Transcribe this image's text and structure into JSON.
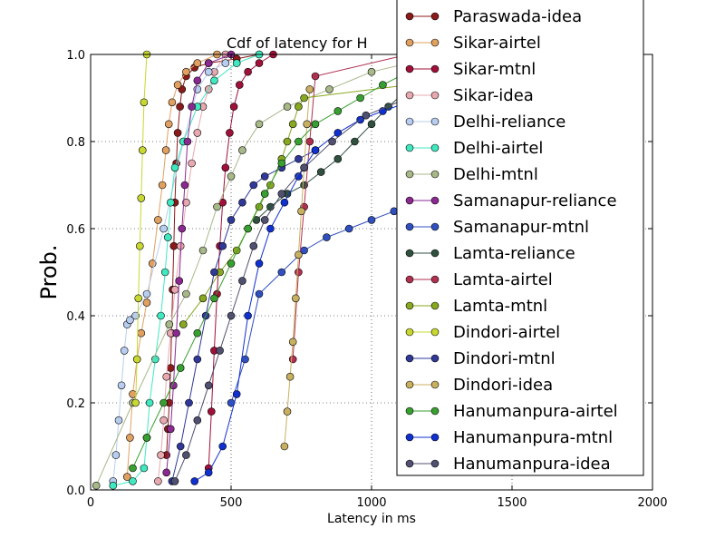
{
  "chart_data": {
    "type": "line",
    "title": "Cdf of latency for H",
    "xlabel": "Latency in ms",
    "ylabel": "Prob.",
    "xlim": [
      0,
      2000
    ],
    "ylim": [
      0,
      1.0
    ],
    "xticks": [
      0,
      500,
      1000,
      1500,
      2000
    ],
    "yticks": [
      0.0,
      0.2,
      0.4,
      0.6,
      0.8,
      1.0
    ],
    "grid": true,
    "legend_position": "top-right",
    "series": [
      {
        "name": "Paraswada-idea",
        "color": "#8b1a1a",
        "x": [
          270,
          275,
          280,
          285,
          288,
          292,
          296,
          300,
          305,
          310,
          318,
          325,
          340,
          370,
          420,
          520,
          600
        ],
        "y": [
          0.08,
          0.14,
          0.2,
          0.28,
          0.36,
          0.46,
          0.56,
          0.66,
          0.75,
          0.82,
          0.88,
          0.92,
          0.95,
          0.97,
          0.98,
          0.99,
          1.0
        ]
      },
      {
        "name": "Sikar-airtel",
        "color": "#e0a060",
        "x": [
          130,
          140,
          150,
          165,
          180,
          200,
          220,
          240,
          255,
          268,
          278,
          290,
          310,
          340,
          380,
          450
        ],
        "y": [
          0.03,
          0.12,
          0.22,
          0.3,
          0.36,
          0.43,
          0.52,
          0.62,
          0.7,
          0.78,
          0.84,
          0.89,
          0.93,
          0.96,
          0.98,
          1.0
        ]
      },
      {
        "name": "Sikar-mtnl",
        "color": "#a0103a",
        "x": [
          420,
          430,
          440,
          450,
          460,
          470,
          480,
          495,
          510,
          530,
          560,
          600,
          650
        ],
        "y": [
          0.05,
          0.18,
          0.32,
          0.45,
          0.56,
          0.66,
          0.74,
          0.82,
          0.88,
          0.93,
          0.96,
          0.98,
          1.0
        ]
      },
      {
        "name": "Sikar-idea",
        "color": "#e8a8b0",
        "x": [
          240,
          250,
          260,
          270,
          285,
          300,
          320,
          340,
          360,
          380,
          400,
          420,
          440,
          480
        ],
        "y": [
          0.02,
          0.08,
          0.16,
          0.26,
          0.36,
          0.46,
          0.56,
          0.66,
          0.75,
          0.82,
          0.88,
          0.92,
          0.96,
          1.0
        ]
      },
      {
        "name": "Delhi-reliance",
        "color": "#b8cef0",
        "x": [
          80,
          90,
          100,
          110,
          120,
          130,
          140,
          160,
          200,
          260,
          330,
          380,
          420,
          480
        ],
        "y": [
          0.02,
          0.08,
          0.16,
          0.24,
          0.32,
          0.38,
          0.39,
          0.4,
          0.45,
          0.6,
          0.8,
          0.92,
          0.96,
          0.98
        ]
      },
      {
        "name": "Delhi-airtel",
        "color": "#40e8c0",
        "x": [
          80,
          150,
          190,
          200,
          210,
          230,
          250,
          265,
          275,
          285,
          300,
          330,
          380,
          440,
          520,
          600
        ],
        "y": [
          0.01,
          0.02,
          0.05,
          0.12,
          0.2,
          0.3,
          0.4,
          0.5,
          0.58,
          0.66,
          0.74,
          0.8,
          0.88,
          0.94,
          0.98,
          1.0
        ]
      },
      {
        "name": "Delhi-mtnl",
        "color": "#a8b888",
        "x": [
          20,
          150,
          280,
          340,
          400,
          450,
          500,
          540,
          600,
          700,
          850,
          1000,
          1200
        ],
        "y": [
          0.01,
          0.2,
          0.38,
          0.45,
          0.55,
          0.65,
          0.72,
          0.78,
          0.84,
          0.88,
          0.92,
          0.96,
          0.99
        ]
      },
      {
        "name": "Samanapur-reliance",
        "color": "#8a2a90",
        "x": [
          270,
          285,
          295,
          305,
          315,
          325,
          335,
          345,
          360,
          380,
          420,
          500
        ],
        "y": [
          0.04,
          0.14,
          0.24,
          0.36,
          0.48,
          0.6,
          0.7,
          0.8,
          0.88,
          0.94,
          0.98,
          1.0
        ]
      },
      {
        "name": "Samanapur-mtnl",
        "color": "#3050c0",
        "x": [
          500,
          550,
          600,
          680,
          760,
          840,
          920,
          1000,
          1080,
          1130
        ],
        "y": [
          0.2,
          0.3,
          0.45,
          0.5,
          0.55,
          0.58,
          0.6,
          0.62,
          0.64,
          0.65
        ]
      },
      {
        "name": "Lamta-reliance",
        "color": "#305040",
        "x": [
          590,
          640,
          700,
          760,
          820,
          880,
          940,
          1000,
          1060,
          1130
        ],
        "y": [
          0.62,
          0.65,
          0.68,
          0.7,
          0.73,
          0.76,
          0.8,
          0.84,
          0.88,
          0.92
        ]
      },
      {
        "name": "Lamta-airtel",
        "color": "#b03050",
        "x": [
          720,
          740,
          760,
          780,
          800,
          1130
        ],
        "y": [
          0.3,
          0.5,
          0.65,
          0.8,
          0.95,
          1.0
        ]
      },
      {
        "name": "Lamta-mtnl",
        "color": "#88a820",
        "x": [
          330,
          400,
          460,
          520,
          560,
          600,
          640,
          680,
          700,
          720,
          740,
          760,
          1130
        ],
        "y": [
          0.38,
          0.44,
          0.5,
          0.55,
          0.6,
          0.65,
          0.7,
          0.76,
          0.8,
          0.84,
          0.88,
          0.9,
          0.93
        ]
      },
      {
        "name": "Dindori-airtel",
        "color": "#c8d830",
        "x": [
          160,
          165,
          170,
          175,
          180,
          185,
          190,
          200
        ],
        "y": [
          0.2,
          0.3,
          0.44,
          0.56,
          0.67,
          0.78,
          0.89,
          1.0
        ]
      },
      {
        "name": "Dindori-mtnl",
        "color": "#303898",
        "x": [
          290,
          320,
          350,
          380,
          410,
          440,
          470,
          500,
          540,
          580,
          620,
          680,
          740,
          800
        ],
        "y": [
          0.02,
          0.1,
          0.2,
          0.3,
          0.4,
          0.5,
          0.56,
          0.62,
          0.66,
          0.7,
          0.72,
          0.74,
          0.76,
          0.78
        ]
      },
      {
        "name": "Dindori-idea",
        "color": "#c8b060",
        "x": [
          690,
          700,
          710,
          720,
          730,
          740,
          750,
          760,
          770,
          780
        ],
        "y": [
          0.1,
          0.18,
          0.26,
          0.34,
          0.44,
          0.54,
          0.64,
          0.74,
          0.84,
          0.92
        ]
      },
      {
        "name": "Hanumanpura-airtel",
        "color": "#38a030",
        "x": [
          150,
          200,
          260,
          320,
          380,
          440,
          500,
          560,
          620,
          680,
          740,
          800,
          880,
          960,
          1040,
          1130
        ],
        "y": [
          0.05,
          0.12,
          0.2,
          0.28,
          0.36,
          0.44,
          0.52,
          0.6,
          0.68,
          0.75,
          0.8,
          0.84,
          0.87,
          0.9,
          0.93,
          0.96
        ]
      },
      {
        "name": "Hanumanpura-mtnl",
        "color": "#1030d0",
        "x": [
          370,
          420,
          470,
          520,
          560,
          600,
          640,
          690,
          740,
          800,
          880,
          960,
          1040,
          1130
        ],
        "y": [
          0.02,
          0.04,
          0.1,
          0.22,
          0.4,
          0.52,
          0.6,
          0.66,
          0.72,
          0.78,
          0.82,
          0.85,
          0.87,
          0.89
        ]
      },
      {
        "name": "Hanumanpura-idea",
        "color": "#505070",
        "x": [
          300,
          340,
          380,
          420,
          460,
          500,
          540,
          580,
          620,
          680,
          760,
          860,
          980,
          1130
        ],
        "y": [
          0.02,
          0.08,
          0.16,
          0.24,
          0.32,
          0.4,
          0.48,
          0.56,
          0.62,
          0.68,
          0.74,
          0.8,
          0.86,
          0.9
        ]
      }
    ]
  }
}
